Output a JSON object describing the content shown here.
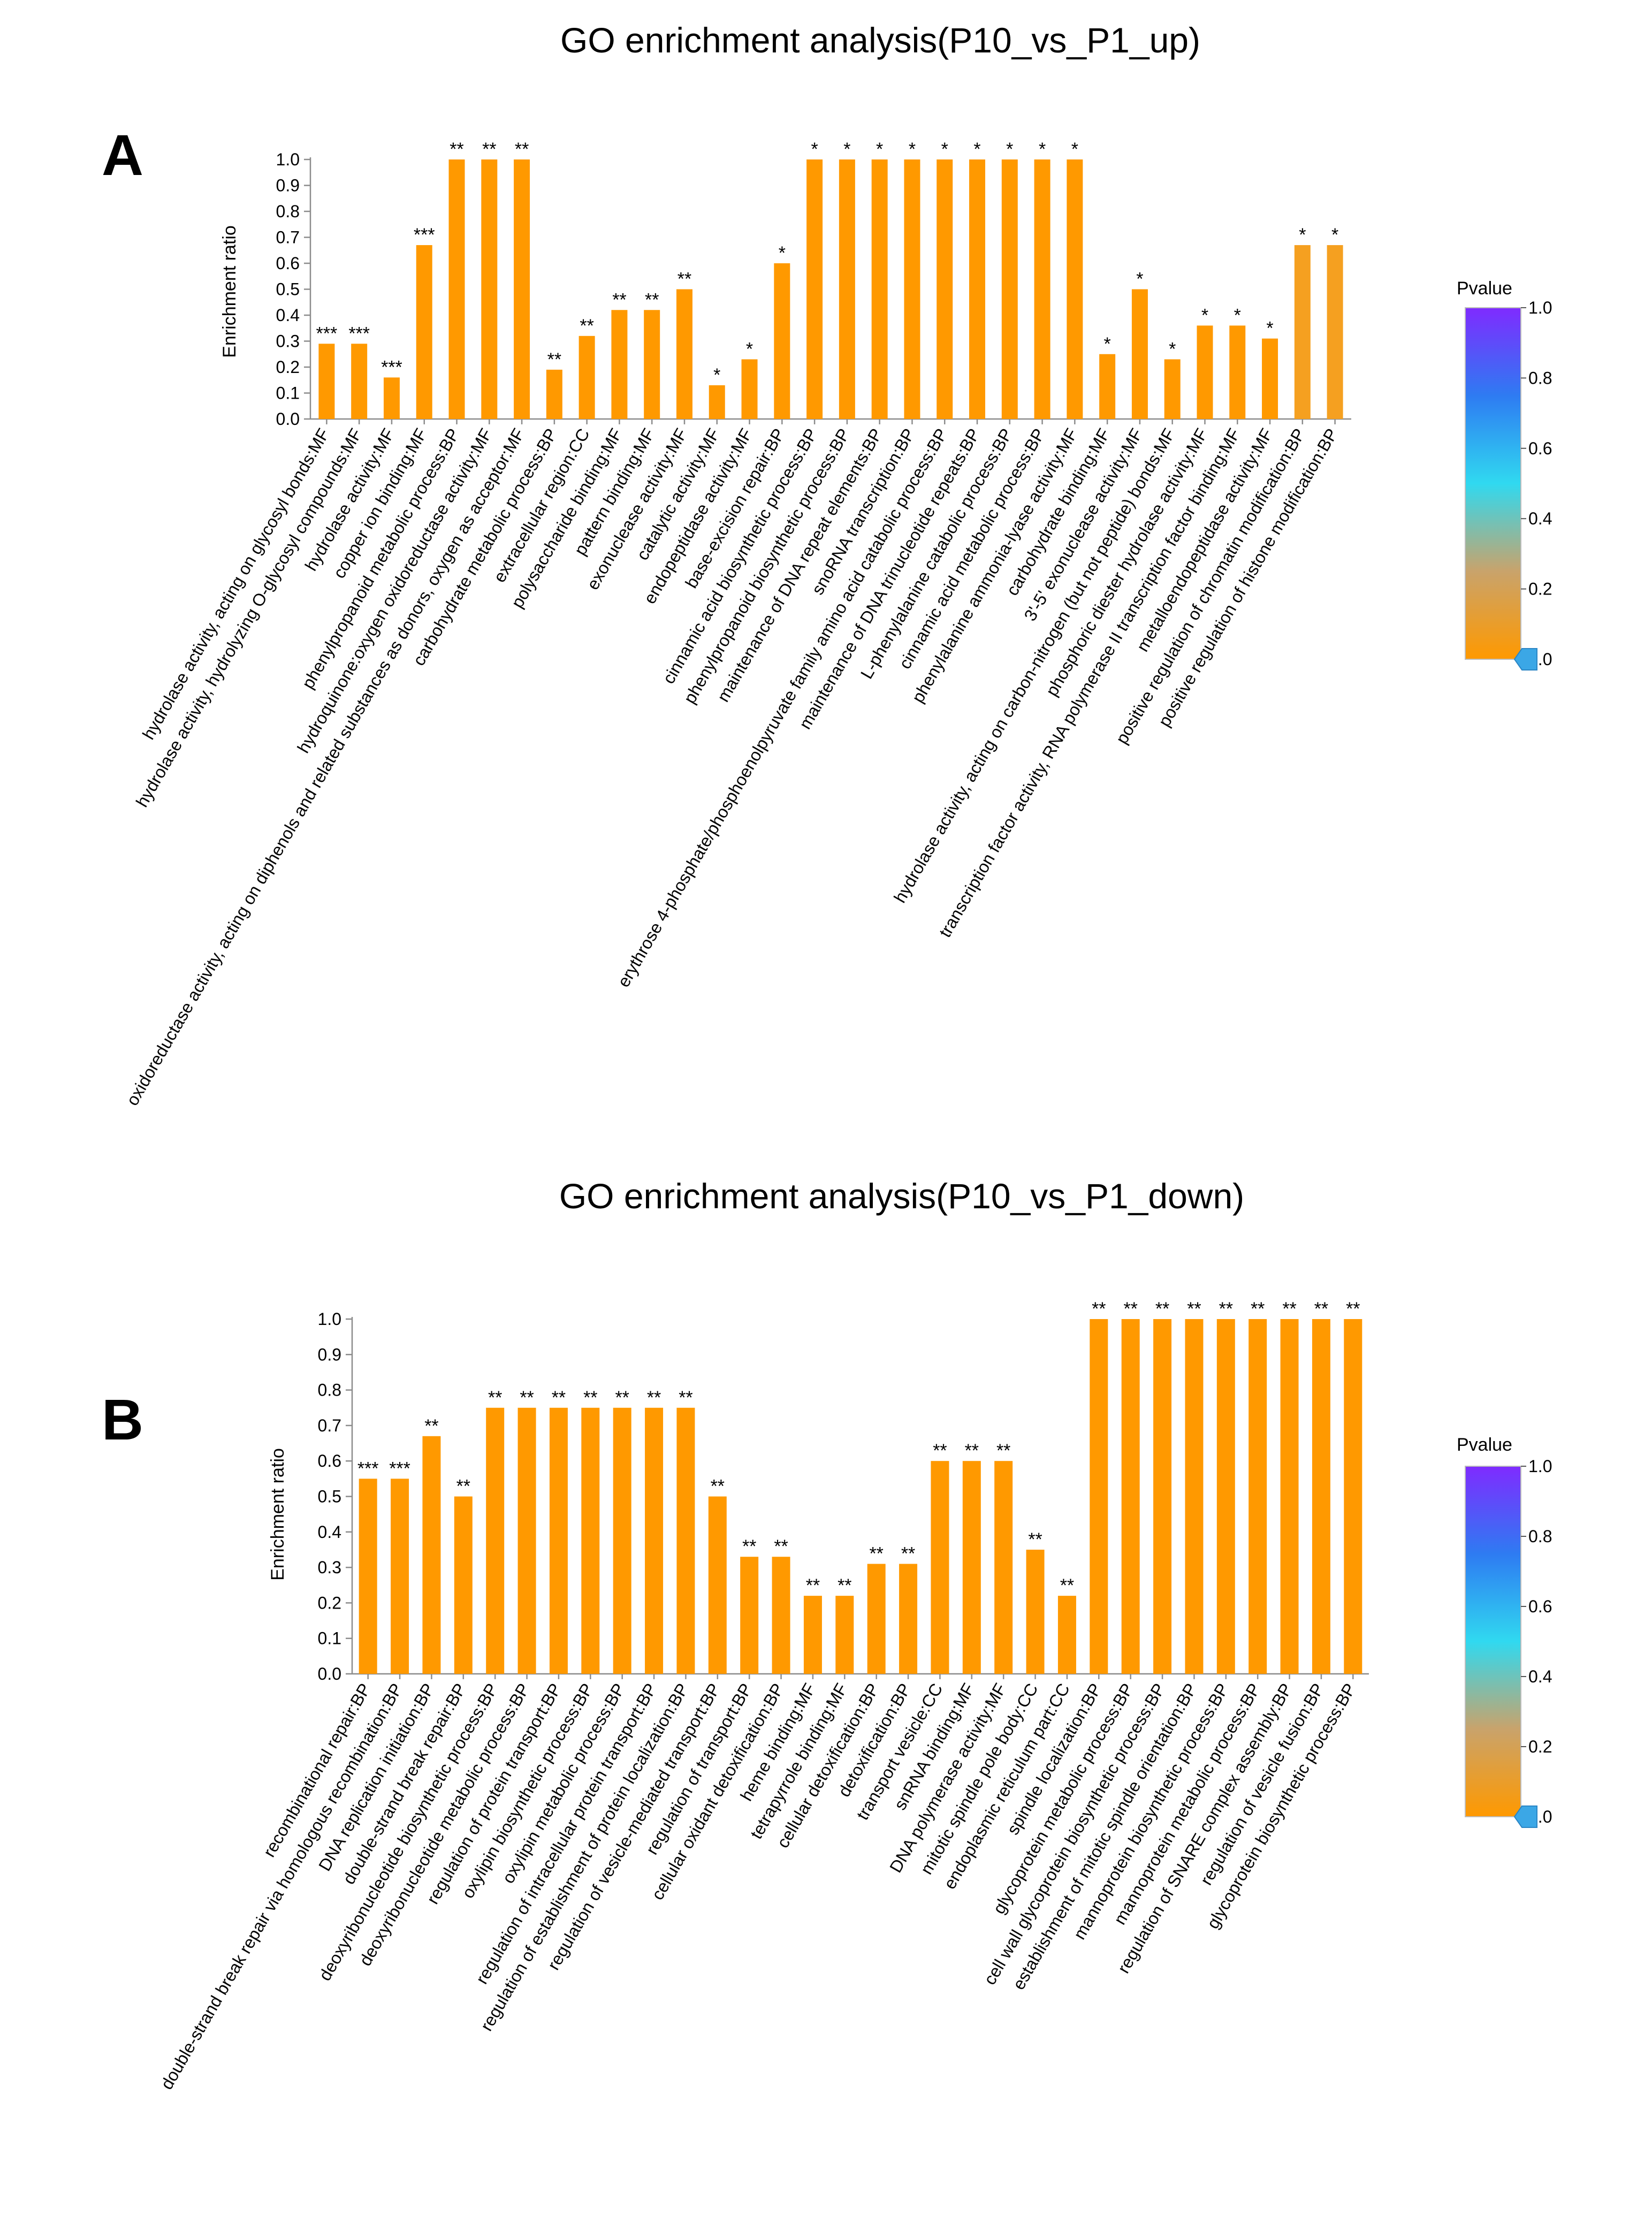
{
  "chart_data": [
    {
      "type": "bar",
      "panel": "A",
      "title": "GO enrichment analysis(P10_vs_P1_up)",
      "ylabel": "Enrichment ratio",
      "xlabel": "",
      "ylim": [
        0,
        1.0
      ],
      "yticks": [
        "0.0",
        "0.1",
        "0.2",
        "0.3",
        "0.4",
        "0.5",
        "0.6",
        "0.7",
        "0.8",
        "0.9",
        "1.0"
      ],
      "bar_color": "#FF9900",
      "categories": [
        "hydrolase activity, acting on glycosyl bonds:MF",
        "hydrolase activity, hydrolyzing O-glycosyl compounds:MF",
        "hydrolase activity:MF",
        "copper ion binding:MF",
        "phenylpropanoid metabolic process:BP",
        "hydroquinone:oxygen oxidoreductase activity:MF",
        "oxidoreductase activity, acting on diphenols and related substances as donors, oxygen as acceptor:MF",
        "carbohydrate metabolic process:BP",
        "extracellular region:CC",
        "polysaccharide binding:MF",
        "pattern binding:MF",
        "exonuclease activity:MF",
        "catalytic activity:MF",
        "endopeptidase activity:MF",
        "base-excision repair:BP",
        "cinnamic acid biosynthetic process:BP",
        "phenylpropanoid biosynthetic process:BP",
        "maintenance of DNA repeat elements:BP",
        "snoRNA transcription:BP",
        "erythrose 4-phosphate/phosphoenolpyruvate family amino acid catabolic process:BP",
        "maintenance of DNA trinucleotide repeats:BP",
        "L-phenylalanine catabolic process:BP",
        "cinnamic acid metabolic process:BP",
        "phenylalanine ammonia-lyase activity:MF",
        "carbohydrate binding:MF",
        "3'-5' exonuclease activity:MF",
        "hydrolase activity, acting on carbon-nitrogen (but not peptide) bonds:MF",
        "phosphoric diester hydrolase activity:MF",
        "transcription factor activity, RNA polymerase II transcription factor binding:MF",
        "metalloendopeptidase activity:MF",
        "positive regulation of chromatin modification:BP",
        "positive regulation of histone modification:BP"
      ],
      "values": [
        0.29,
        0.29,
        0.16,
        0.67,
        1.0,
        1.0,
        1.0,
        0.19,
        0.32,
        0.42,
        0.42,
        0.5,
        0.13,
        0.23,
        0.6,
        1.0,
        1.0,
        1.0,
        1.0,
        1.0,
        1.0,
        1.0,
        1.0,
        1.0,
        0.25,
        0.5,
        0.23,
        0.36,
        0.36,
        0.31,
        0.67,
        0.67
      ],
      "significance": [
        "***",
        "***",
        "***",
        "***",
        "**",
        "**",
        "**",
        "**",
        "**",
        "**",
        "**",
        "**",
        "*",
        "*",
        "*",
        "*",
        "*",
        "*",
        "*",
        "*",
        "*",
        "*",
        "*",
        "*",
        "*",
        "*",
        "*",
        "*",
        "*",
        "*",
        "*",
        "*"
      ],
      "bar_colors": [
        "#FF9900",
        "#FF9900",
        "#FF9900",
        "#FF9900",
        "#FF9900",
        "#FF9900",
        "#FF9900",
        "#FF9900",
        "#FF9900",
        "#FF9900",
        "#FF9900",
        "#FF9900",
        "#FF9900",
        "#FF9900",
        "#FF9900",
        "#FF9900",
        "#FF9900",
        "#FF9900",
        "#FF9900",
        "#FF9900",
        "#FF9900",
        "#FF9900",
        "#FF9900",
        "#FF9900",
        "#FF9900",
        "#FF9900",
        "#FF9900",
        "#FF9900",
        "#FF9900",
        "#FF9900",
        "#F5A020",
        "#F5A020"
      ],
      "legend": {
        "title": "Pvalue",
        "ticks": [
          "1.0",
          "0.8",
          "0.6",
          "0.4",
          "0.2",
          "0.0"
        ],
        "gradient": [
          "#7F2BFF",
          "#2E7BF2",
          "#30D9F0",
          "#C9A36B",
          "#FF9900"
        ],
        "marker_value": 0.0,
        "marker_color": "#3BA7E6"
      }
    },
    {
      "type": "bar",
      "panel": "B",
      "title": "GO enrichment analysis(P10_vs_P1_down)",
      "ylabel": "Enrichment ratio",
      "xlabel": "",
      "ylim": [
        0,
        1.0
      ],
      "yticks": [
        "0.0",
        "0.1",
        "0.2",
        "0.3",
        "0.4",
        "0.5",
        "0.6",
        "0.7",
        "0.8",
        "0.9",
        "1.0"
      ],
      "bar_color": "#FF9900",
      "categories": [
        "recombinational repair:BP",
        "double-strand break repair via homologous recombination:BP",
        "DNA replication initiation:BP",
        "double-strand break repair:BP",
        "deoxyribonucleotide biosynthetic process:BP",
        "deoxyribonucleotide metabolic process:BP",
        "regulation of protein transport:BP",
        "oxylipin biosynthetic process:BP",
        "oxylipin metabolic process:BP",
        "regulation of intracellular protein transport:BP",
        "regulation of establishment of protein localization:BP",
        "regulation of vesicle-mediated transport:BP",
        "regulation of transport:BP",
        "cellular oxidant detoxification:BP",
        "heme binding:MF",
        "tetrapyrrole binding:MF",
        "cellular detoxification:BP",
        "detoxification:BP",
        "transport vesicle:CC",
        "snRNA binding:MF",
        "DNA polymerase activity:MF",
        "mitotic spindle pole body:CC",
        "endoplasmic reticulum part:CC",
        "spindle localization:BP",
        "glycoprotein metabolic process:BP",
        "cell wall glycoprotein biosynthetic process:BP",
        "establishment of mitotic spindle orientation:BP",
        "mannoprotein biosynthetic process:BP",
        "mannoprotein metabolic process:BP",
        "regulation of SNARE complex assembly:BP",
        "regulation of vesicle fusion:BP",
        "glycoprotein biosynthetic process:BP"
      ],
      "values": [
        0.55,
        0.55,
        0.67,
        0.5,
        0.75,
        0.75,
        0.75,
        0.75,
        0.75,
        0.75,
        0.75,
        0.5,
        0.33,
        0.33,
        0.22,
        0.22,
        0.31,
        0.31,
        0.6,
        0.6,
        0.6,
        0.35,
        0.22,
        1.0,
        1.0,
        1.0,
        1.0,
        1.0,
        1.0,
        1.0,
        1.0,
        1.0
      ],
      "significance": [
        "***",
        "***",
        "**",
        "**",
        "**",
        "**",
        "**",
        "**",
        "**",
        "**",
        "**",
        "**",
        "**",
        "**",
        "**",
        "**",
        "**",
        "**",
        "**",
        "**",
        "**",
        "**",
        "**",
        "**",
        "**",
        "**",
        "**",
        "**",
        "**",
        "**",
        "**",
        "**"
      ],
      "bar_colors": [
        "#FF9900",
        "#FF9900",
        "#FF9900",
        "#FF9900",
        "#FF9900",
        "#FF9900",
        "#FF9900",
        "#FF9900",
        "#FF9900",
        "#FF9900",
        "#FF9900",
        "#FF9900",
        "#FF9900",
        "#FF9900",
        "#FF9900",
        "#FF9900",
        "#FF9900",
        "#FF9900",
        "#FF9900",
        "#FF9900",
        "#FF9900",
        "#FF9900",
        "#FF9900",
        "#FF9900",
        "#FF9900",
        "#FF9900",
        "#FF9900",
        "#FF9900",
        "#FF9900",
        "#FF9900",
        "#FF9900",
        "#FF9900"
      ],
      "legend": {
        "title": "Pvalue",
        "ticks": [
          "1.0",
          "0.8",
          "0.6",
          "0.4",
          "0.2",
          "0.0"
        ],
        "gradient": [
          "#7F2BFF",
          "#2E7BF2",
          "#30D9F0",
          "#C9A36B",
          "#FF9900"
        ],
        "marker_value": 0.0,
        "marker_color": "#3BA7E6"
      }
    }
  ]
}
